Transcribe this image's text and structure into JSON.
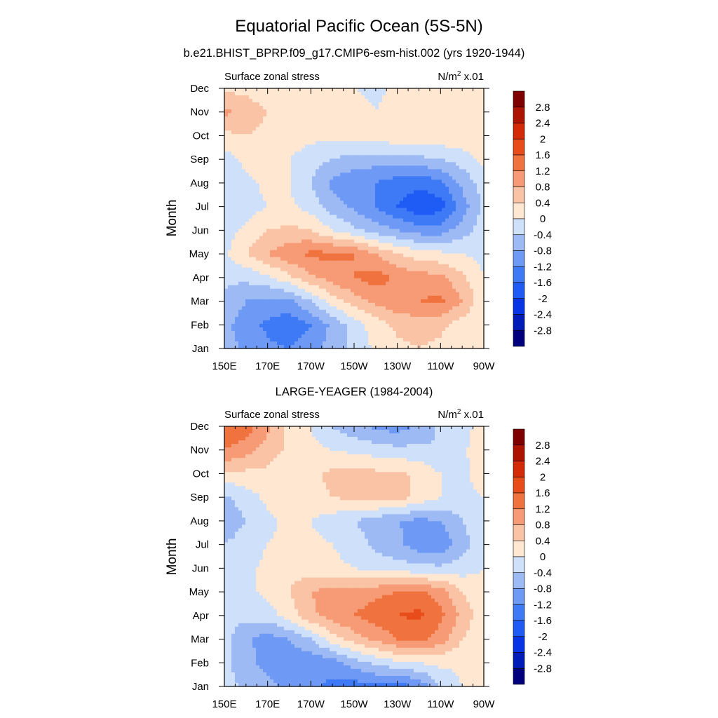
{
  "figure": {
    "title": "Equatorial Pacific Ocean (5S-5N)",
    "subtitle": "b.e21.BHIST_BPRP.f09_g17.CMIP6-esm-hist.002 (yrs 1920-1944)"
  },
  "colors": {
    "palette": [
      "#00007f",
      "#001cb8",
      "#0735e6",
      "#1e5cf5",
      "#3e7af5",
      "#6e9af5",
      "#9ebaf5",
      "#cfe0fb",
      "#ffe7d2",
      "#fbc3a5",
      "#f69b75",
      "#f0723f",
      "#e84c1b",
      "#d32a08",
      "#ac1400",
      "#7f0000"
    ]
  },
  "chart_data": [
    {
      "type": "heatmap",
      "panel_title": "",
      "left_label": "Surface zonal stress",
      "right_label_base": "N/m",
      "right_label_sup": "2",
      "right_label_tail": " x.01",
      "ylabel": "Month",
      "x_tick_labels": [
        "150E",
        "170E",
        "170W",
        "150W",
        "130W",
        "110W",
        "90W"
      ],
      "x_ticks_lon": [
        150,
        170,
        190,
        210,
        230,
        250,
        270
      ],
      "y_tick_labels": [
        "Jan",
        "Feb",
        "Mar",
        "Apr",
        "May",
        "Jun",
        "Jul",
        "Aug",
        "Sep",
        "Oct",
        "Nov",
        "Dec"
      ],
      "xlim": [
        150,
        270
      ],
      "ylim": [
        1,
        12
      ],
      "colorbar_levels": [
        -2.8,
        -2.4,
        -2,
        -1.6,
        -1.2,
        -0.8,
        -0.4,
        0,
        0.4,
        0.8,
        1.2,
        1.6,
        2,
        2.4,
        2.8
      ],
      "colorbar_labels": [
        "2.8",
        "2.4",
        "2",
        "1.6",
        "1.2",
        "0.8",
        "0.4",
        "0",
        "-0.4",
        "-0.8",
        "-1.2",
        "-1.6",
        "-2",
        "-2.4",
        "-2.8"
      ],
      "lon": [
        150,
        160,
        170,
        180,
        190,
        200,
        210,
        220,
        230,
        240,
        250,
        260,
        270
      ],
      "values": [
        [
          -0.6,
          -0.9,
          -1.1,
          -1.2,
          -1.0,
          -0.6,
          -0.3,
          0.1,
          0.3,
          0.4,
          0.3,
          0.1,
          0.0
        ],
        [
          -0.7,
          -1.0,
          -1.3,
          -1.5,
          -1.2,
          -0.7,
          -0.2,
          0.2,
          0.5,
          0.6,
          0.5,
          0.2,
          0.0
        ],
        [
          -0.5,
          -0.8,
          -0.9,
          -0.9,
          -0.4,
          0.2,
          0.6,
          0.9,
          1.1,
          1.2,
          1.3,
          0.8,
          0.1
        ],
        [
          -0.3,
          -0.3,
          -0.1,
          0.3,
          0.7,
          1.0,
          1.2,
          1.4,
          1.1,
          1.0,
          0.9,
          0.5,
          0.0
        ],
        [
          -0.1,
          0.4,
          0.8,
          1.1,
          1.3,
          1.3,
          1.2,
          0.8,
          0.4,
          0.2,
          0.1,
          0.0,
          -0.1
        ],
        [
          -0.2,
          0.1,
          0.4,
          0.5,
          0.4,
          0.0,
          -0.3,
          -0.6,
          -0.8,
          -1.0,
          -1.0,
          -0.6,
          -0.2
        ],
        [
          -0.3,
          -0.2,
          0.0,
          0.1,
          -0.2,
          -0.6,
          -0.9,
          -1.2,
          -1.6,
          -1.9,
          -1.8,
          -1.0,
          -0.3
        ],
        [
          -0.3,
          -0.1,
          0.1,
          0.0,
          -0.4,
          -0.9,
          -1.1,
          -1.2,
          -1.4,
          -1.5,
          -1.3,
          -0.7,
          -0.2
        ],
        [
          -0.2,
          0.1,
          0.2,
          0.0,
          -0.2,
          -0.4,
          -0.6,
          -0.6,
          -0.6,
          -0.5,
          -0.4,
          -0.2,
          0.1
        ],
        [
          0.3,
          0.4,
          0.3,
          0.2,
          0.1,
          0.1,
          0.2,
          0.2,
          0.3,
          0.3,
          0.3,
          0.3,
          0.3
        ],
        [
          0.9,
          0.6,
          0.4,
          0.4,
          0.3,
          0.3,
          0.2,
          0.0,
          0.2,
          0.3,
          0.3,
          0.3,
          0.3
        ],
        [
          0.3,
          0.3,
          0.2,
          0.2,
          0.1,
          0.1,
          0.0,
          -0.1,
          0.1,
          0.2,
          0.2,
          0.2,
          0.2
        ]
      ]
    },
    {
      "type": "heatmap",
      "panel_title": "LARGE-YEAGER (1984-2004)",
      "left_label": "Surface zonal stress",
      "right_label_base": "N/m",
      "right_label_sup": "2",
      "right_label_tail": " x.01",
      "ylabel": "Month",
      "x_tick_labels": [
        "150E",
        "170E",
        "170W",
        "150W",
        "130W",
        "110W",
        "90W"
      ],
      "x_ticks_lon": [
        150,
        170,
        190,
        210,
        230,
        250,
        270
      ],
      "y_tick_labels": [
        "Jan",
        "Feb",
        "Mar",
        "Apr",
        "May",
        "Jun",
        "Jul",
        "Aug",
        "Sep",
        "Oct",
        "Nov",
        "Dec"
      ],
      "xlim": [
        150,
        270
      ],
      "ylim": [
        1,
        12
      ],
      "colorbar_levels": [
        -2.8,
        -2.4,
        -2,
        -1.6,
        -1.2,
        -0.8,
        -0.4,
        0,
        0.4,
        0.8,
        1.2,
        1.6,
        2,
        2.4,
        2.8
      ],
      "colorbar_labels": [
        "2.8",
        "2.4",
        "2",
        "1.6",
        "1.2",
        "0.8",
        "0.4",
        "0",
        "-0.4",
        "-0.8",
        "-1.2",
        "-1.6",
        "-2",
        "-2.4",
        "-2.8"
      ],
      "lon": [
        150,
        160,
        170,
        180,
        190,
        200,
        210,
        220,
        230,
        240,
        250,
        260,
        270
      ],
      "values": [
        [
          -0.2,
          -0.5,
          -0.7,
          -0.9,
          -1.1,
          -1.3,
          -1.4,
          -1.3,
          -1.4,
          -1.1,
          -0.4,
          0.0,
          0.1
        ],
        [
          -0.3,
          -0.7,
          -0.9,
          -1.0,
          -1.1,
          -1.0,
          -0.6,
          -0.3,
          -0.1,
          0.0,
          0.1,
          0.1,
          0.1
        ],
        [
          -0.3,
          -0.7,
          -1.0,
          -0.8,
          -0.4,
          0.2,
          0.6,
          0.9,
          1.2,
          1.3,
          1.0,
          0.4,
          0.1
        ],
        [
          -0.2,
          -0.3,
          -0.2,
          0.2,
          0.7,
          1.0,
          1.2,
          1.4,
          1.6,
          1.7,
          1.3,
          0.7,
          0.1
        ],
        [
          -0.2,
          -0.1,
          0.1,
          0.4,
          0.8,
          1.0,
          1.0,
          1.1,
          1.2,
          1.3,
          1.0,
          0.4,
          0.1
        ],
        [
          -0.2,
          -0.1,
          0.1,
          0.2,
          0.2,
          0.1,
          0.0,
          -0.2,
          -0.2,
          -0.3,
          -0.3,
          -0.2,
          0.0
        ],
        [
          -0.4,
          -0.2,
          0.0,
          0.1,
          0.1,
          0.0,
          -0.2,
          -0.5,
          -0.7,
          -1.0,
          -1.1,
          -0.6,
          -0.1
        ],
        [
          -0.7,
          -0.4,
          -0.1,
          0.1,
          0.0,
          -0.2,
          -0.4,
          -0.6,
          -0.8,
          -0.9,
          -0.8,
          -0.4,
          0.0
        ],
        [
          -0.5,
          -0.2,
          0.1,
          0.2,
          0.3,
          0.4,
          0.5,
          0.6,
          0.6,
          0.3,
          0.0,
          -0.1,
          0.0
        ],
        [
          0.3,
          0.3,
          0.3,
          0.2,
          0.3,
          0.5,
          0.5,
          0.5,
          0.5,
          0.3,
          0.0,
          -0.1,
          0.2
        ],
        [
          1.2,
          1.0,
          0.6,
          0.3,
          0.1,
          0.0,
          -0.1,
          -0.2,
          -0.3,
          -0.3,
          -0.4,
          -0.1,
          0.3
        ],
        [
          1.6,
          1.4,
          0.9,
          0.3,
          0.0,
          -0.4,
          -0.7,
          -0.9,
          -1.0,
          -0.7,
          -0.3,
          -0.1,
          0.1
        ]
      ]
    }
  ]
}
